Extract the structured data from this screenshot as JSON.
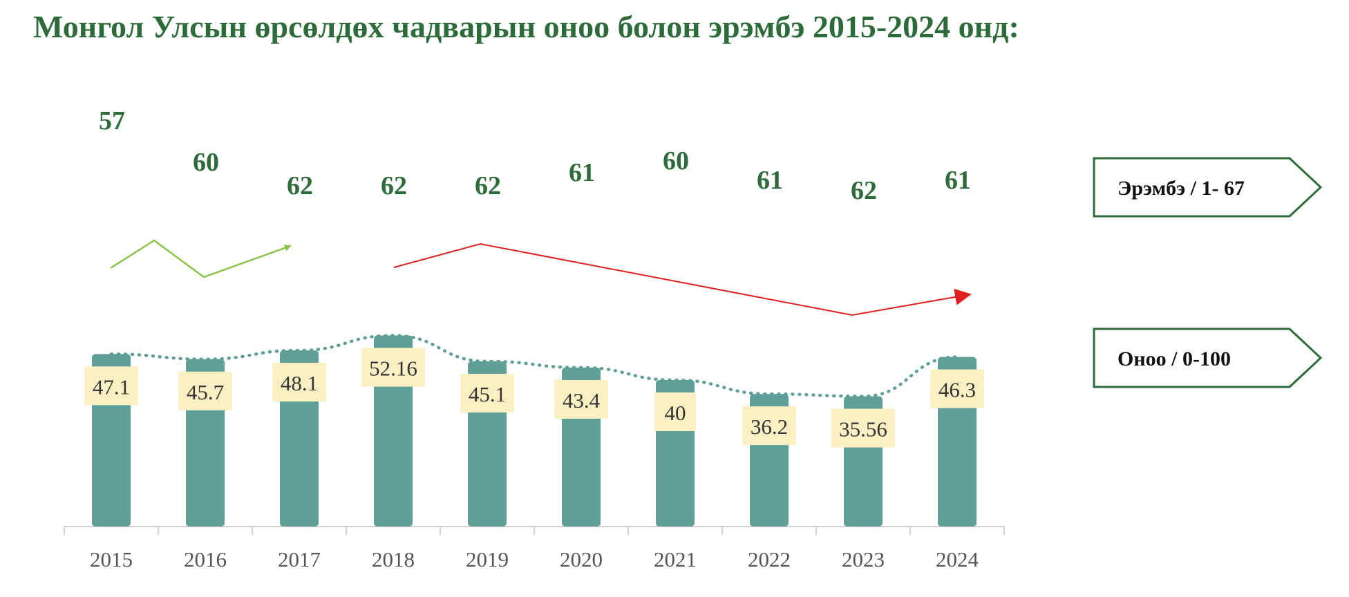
{
  "title": "Монгол Улсын өрсөлдөх чадварын оноо болон эрэмбэ 2015-2024 онд:",
  "colors": {
    "title": "#2e6b3a",
    "bar": "#5f9f98",
    "label_bg": "#fbefc4",
    "trend_line": "#5f9f98",
    "rank_text": "#2e6b3a",
    "legend_border": "#2e6b3a",
    "arrow_up_segment": "#8bc34a",
    "arrow_down_segment": "#e02020"
  },
  "legend": {
    "rank_label": "Эрэмбэ / 1- 67",
    "score_label": "Оноо / 0-100"
  },
  "chart_data": {
    "type": "bar",
    "categories": [
      "2015",
      "2016",
      "2017",
      "2018",
      "2019",
      "2020",
      "2021",
      "2022",
      "2023",
      "2024"
    ],
    "series": [
      {
        "name": "Оноо / 0-100",
        "values": [
          47.1,
          45.7,
          48.1,
          52.16,
          45.1,
          43.4,
          40,
          36.2,
          35.56,
          46.3
        ]
      },
      {
        "name": "Эрэмбэ / 1- 67",
        "values": [
          57,
          60,
          62,
          62,
          62,
          61,
          60,
          61,
          62,
          61
        ]
      }
    ],
    "score_labels": [
      "47.1",
      "45.7",
      "48.1",
      "52.16",
      "45.1",
      "43.4",
      "40",
      "36.2",
      "35.56",
      "46.3"
    ],
    "trend_line": "dotted",
    "ylim": [
      0,
      100
    ],
    "grid": false,
    "legend_position": "right"
  }
}
